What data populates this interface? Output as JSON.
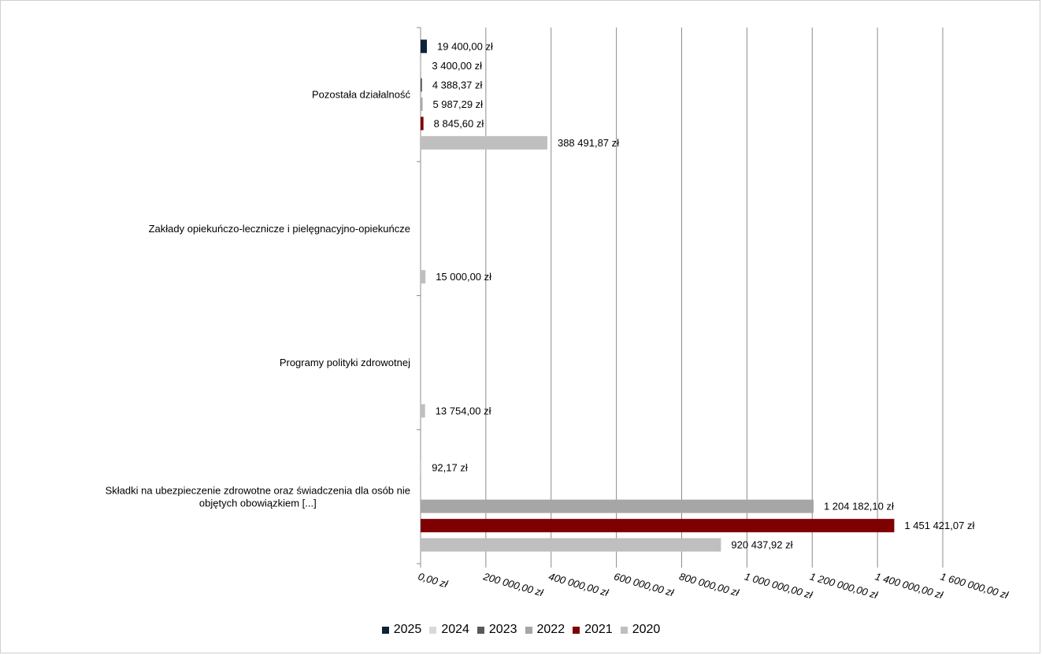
{
  "chart_data": {
    "type": "bar",
    "orientation": "horizontal",
    "categories": [
      "Pozostała działalność",
      "Zakłady opiekuńczo-lecznicze i pielęgnacyjno-opiekuńcze",
      "Programy polityki zdrowotnej",
      "Składki na ubezpieczenie zdrowotne oraz świadczenia dla osób nie objętych obowiązkiem [...]"
    ],
    "series": [
      {
        "name": "2025",
        "color": "#0d2238",
        "values": [
          19400.0,
          null,
          null,
          null
        ],
        "labels": [
          "19 400,00 zł",
          null,
          null,
          null
        ]
      },
      {
        "name": "2024",
        "color": "#d9d9d9",
        "values": [
          3400.0,
          null,
          null,
          92.17
        ],
        "labels": [
          "3 400,00 zł",
          null,
          null,
          "92,17 zł"
        ]
      },
      {
        "name": "2023",
        "color": "#595959",
        "values": [
          4388.37,
          null,
          null,
          null
        ],
        "labels": [
          "4 388,37 zł",
          null,
          null,
          null
        ]
      },
      {
        "name": "2022",
        "color": "#a6a6a6",
        "values": [
          5987.29,
          null,
          null,
          1204182.1
        ],
        "labels": [
          "5 987,29 zł",
          null,
          null,
          "1 204 182,10 zł"
        ]
      },
      {
        "name": "2021",
        "color": "#7f0000",
        "values": [
          8845.6,
          null,
          null,
          1451421.07
        ],
        "labels": [
          "8 845,60 zł",
          null,
          null,
          "1 451 421,07 zł"
        ]
      },
      {
        "name": "2020",
        "color": "#bfbfbf",
        "values": [
          388491.87,
          15000.0,
          13754.0,
          920437.92
        ],
        "labels": [
          "388 491,87 zł",
          "15 000,00 zł",
          "13 754,00 zł",
          "920 437,92 zł"
        ]
      }
    ],
    "xlim": [
      0,
      1600000
    ],
    "x_ticks": [
      0,
      200000,
      400000,
      600000,
      800000,
      1000000,
      1200000,
      1400000,
      1600000
    ],
    "x_tick_labels": [
      "0,00 zł",
      "200 000,00 zł",
      "400 000,00 zł",
      "600 000,00 zł",
      "800 000,00 zł",
      "1 000 000,00 zł",
      "1 200 000,00 zł",
      "1 400 000,00 zł",
      "1 600 000,00 zł"
    ],
    "grid": "vertical",
    "legend_position": "bottom",
    "legend_order": [
      "2025",
      "2024",
      "2023",
      "2022",
      "2021",
      "2020"
    ]
  }
}
